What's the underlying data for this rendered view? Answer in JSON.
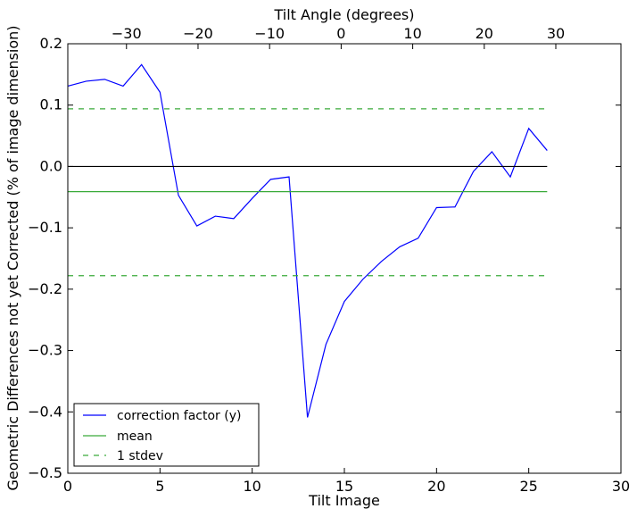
{
  "chart_data": {
    "type": "line",
    "xlabel": "Tilt Image",
    "ylabel": "Geometric Differences not yet Corrected (% of image dimension)",
    "x2label": "Tilt Angle (degrees)",
    "xlim": [
      0,
      30
    ],
    "ylim": [
      -0.5,
      0.2
    ],
    "x2lim": [
      -38.2,
      39.1
    ],
    "xticks": [
      0,
      5,
      10,
      15,
      20,
      25,
      30
    ],
    "yticks": [
      0.2,
      0.1,
      0.0,
      -0.1,
      -0.2,
      -0.3,
      -0.4,
      -0.5
    ],
    "x2ticks": [
      -30,
      -20,
      -10,
      0,
      10,
      20,
      30
    ],
    "xtick_labels": [
      "0",
      "5",
      "10",
      "15",
      "20",
      "25",
      "30"
    ],
    "ytick_labels": [
      "0.2",
      "0.1",
      "0.0",
      "−0.1",
      "−0.2",
      "−0.3",
      "−0.4",
      "−0.5"
    ],
    "x2tick_labels": [
      "−30",
      "−20",
      "−10",
      "0",
      "10",
      "20",
      "30"
    ],
    "grid": false,
    "legend_position": "lower-left",
    "series": [
      {
        "name": "correction factor (y)",
        "color": "#0000ff",
        "style": "solid",
        "x": [
          0,
          1,
          2,
          3,
          4,
          5,
          6,
          7,
          8,
          9,
          10,
          11,
          12,
          13,
          14,
          15,
          16,
          17,
          18,
          19,
          20,
          21,
          22,
          23,
          24,
          25,
          26
        ],
        "y": [
          0.131,
          0.139,
          0.142,
          0.131,
          0.166,
          0.121,
          -0.047,
          -0.097,
          -0.081,
          -0.085,
          -0.052,
          -0.021,
          -0.017,
          -0.409,
          -0.29,
          -0.22,
          -0.184,
          -0.155,
          -0.131,
          -0.117,
          -0.067,
          -0.066,
          -0.008,
          0.024,
          -0.017,
          0.062,
          0.026
        ]
      },
      {
        "name": "mean",
        "color": "#3aaa3a",
        "style": "solid",
        "x": [
          0,
          26
        ],
        "y": [
          -0.041,
          -0.041
        ]
      },
      {
        "name": "1 stdev",
        "color": "#3aaa3a",
        "style": "dashed",
        "x": [
          0,
          26
        ],
        "y": [
          0.094,
          0.094
        ]
      },
      {
        "name": "",
        "color": "#3aaa3a",
        "style": "dashed",
        "x": [
          0,
          26
        ],
        "y": [
          -0.178,
          -0.178
        ]
      },
      {
        "name": "",
        "color": "#000000",
        "style": "solid",
        "x": [
          0,
          26
        ],
        "y": [
          0.0,
          0.0
        ]
      }
    ],
    "legend": [
      {
        "label": "correction factor (y)",
        "color": "#0000ff",
        "style": "solid"
      },
      {
        "label": "mean",
        "color": "#3aaa3a",
        "style": "solid"
      },
      {
        "label": "1 stdev",
        "color": "#3aaa3a",
        "style": "dashed"
      }
    ]
  }
}
